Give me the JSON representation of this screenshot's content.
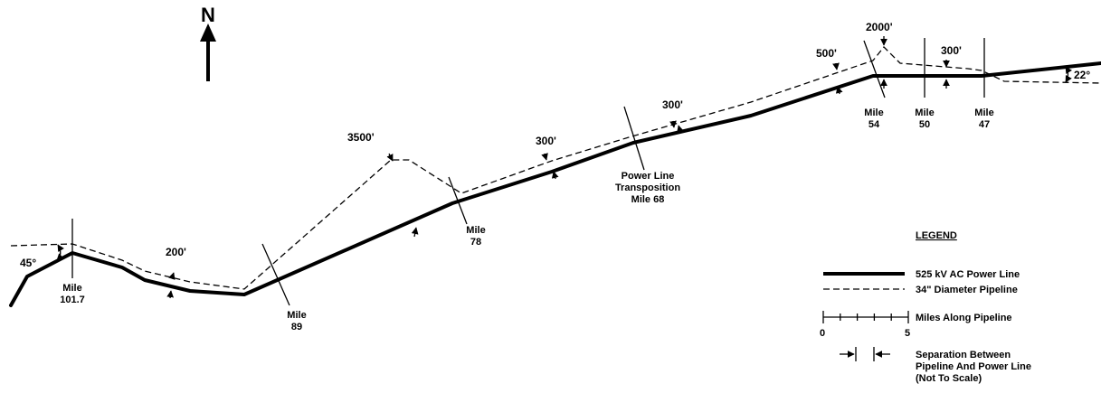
{
  "north": {
    "label": "N"
  },
  "angles": {
    "west": "45°",
    "east": "22°"
  },
  "separations": [
    "200'",
    "3500'",
    "300'",
    "300'",
    "500'",
    "2000'",
    "300'"
  ],
  "mileposts": [
    {
      "line1": "Mile",
      "line2": "101.7"
    },
    {
      "line1": "Mile",
      "line2": "89"
    },
    {
      "line1": "Mile",
      "line2": "78"
    },
    {
      "line1": "Mile",
      "line2": "54"
    },
    {
      "line1": "Mile",
      "line2": "50"
    },
    {
      "line1": "Mile",
      "line2": "47"
    }
  ],
  "transposition": {
    "line1": "Power Line",
    "line2": "Transposition",
    "line3": "Mile 68"
  },
  "legend": {
    "title": "LEGEND",
    "power_line": "525 kV AC Power Line",
    "pipeline": "34\" Diameter Pipeline",
    "miles": "Miles Along Pipeline",
    "scale_start": "0",
    "scale_end": "5",
    "separation_1": "Separation Between",
    "separation_2": "Pipeline And Power Line",
    "separation_3": "(Not To Scale)"
  }
}
